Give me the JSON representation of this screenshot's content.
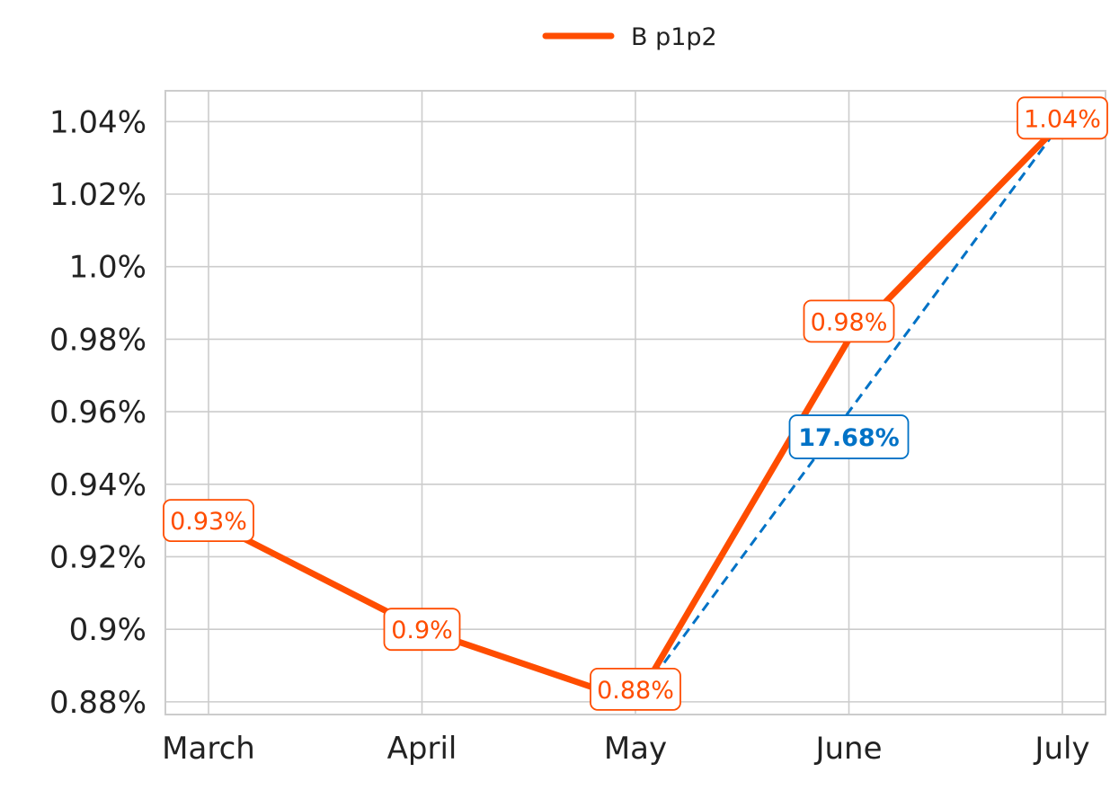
{
  "chart_data": {
    "type": "line",
    "title": "",
    "xlabel": "",
    "ylabel": "",
    "categories": [
      "March",
      "April",
      "May",
      "June",
      "July"
    ],
    "series": [
      {
        "name": "B p1p2",
        "color": "#ff4d00",
        "values": [
          0.93,
          0.9,
          0.88,
          0.98,
          1.04
        ],
        "labels": [
          "0.93%",
          "0.9%",
          "0.88%",
          "0.98%",
          "1.04%"
        ]
      }
    ],
    "trend": {
      "from_category": "May",
      "to_category": "July",
      "from_value": 0.88,
      "to_value": 1.04,
      "label": "17.68%",
      "color": "#0072c6",
      "style": "dashed"
    },
    "y_ticks": [
      0.88,
      0.9,
      0.92,
      0.94,
      0.96,
      0.98,
      1.0,
      1.02,
      1.04
    ],
    "y_tick_labels": [
      "0.88%",
      "0.9%",
      "0.92%",
      "0.94%",
      "0.96%",
      "0.98%",
      "1.0%",
      "1.02%",
      "1.04%"
    ],
    "ylim": [
      0.8765,
      1.0485
    ],
    "grid": true,
    "legend": {
      "position": "top-center",
      "entries": [
        "B p1p2"
      ]
    },
    "colors": {
      "series": "#ff4d00",
      "trend": "#0072c6",
      "grid": "#cccccc",
      "text": "#222222"
    }
  }
}
